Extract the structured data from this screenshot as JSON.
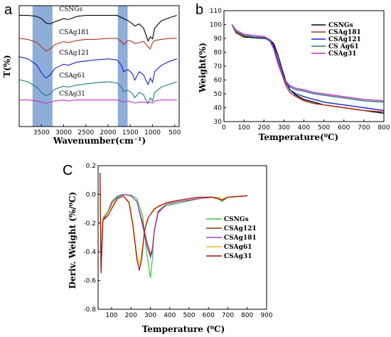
{
  "chart_data": [
    {
      "panel": "a",
      "type": "line",
      "xlabel": "Wavenumber(cm⁻¹)",
      "ylabel": "T(%)",
      "xlim": [
        4000,
        400
      ],
      "xticks": [
        3500,
        3000,
        2500,
        2000,
        1500,
        1000,
        500
      ],
      "highlight_bands": [
        [
          3700,
          3250
        ],
        [
          1780,
          1560
        ]
      ],
      "series": [
        {
          "name": "CSNGs",
          "color": "#000000",
          "offset": 0.92,
          "x": [
            4000,
            3800,
            3600,
            3500,
            3400,
            3300,
            3200,
            3000,
            2900,
            2700,
            2500,
            2300,
            2000,
            1800,
            1700,
            1650,
            1550,
            1450,
            1400,
            1300,
            1200,
            1150,
            1100,
            1050,
            1000,
            950,
            800,
            600,
            450
          ],
          "y": [
            0,
            0,
            -0.01,
            -0.03,
            -0.07,
            -0.08,
            -0.06,
            -0.03,
            -0.04,
            -0.01,
            0,
            0,
            0,
            0,
            -0.02,
            -0.03,
            -0.05,
            -0.08,
            -0.1,
            -0.08,
            -0.12,
            -0.18,
            -0.24,
            -0.2,
            -0.22,
            -0.12,
            -0.05,
            -0.02,
            0
          ]
        },
        {
          "name": "CSAg181",
          "color": "#b5311d",
          "offset": 0.73,
          "x": [
            4000,
            3800,
            3600,
            3500,
            3400,
            3300,
            3200,
            3000,
            2900,
            2700,
            2500,
            2300,
            2000,
            1800,
            1700,
            1650,
            1600,
            1550,
            1450,
            1400,
            1300,
            1200,
            1100,
            1050,
            1000,
            950,
            800,
            600,
            450
          ],
          "y": [
            0,
            -0.01,
            -0.04,
            -0.08,
            -0.12,
            -0.1,
            -0.06,
            -0.03,
            -0.04,
            -0.02,
            -0.01,
            -0.01,
            0,
            0,
            -0.03,
            -0.06,
            -0.04,
            -0.02,
            -0.03,
            -0.05,
            -0.04,
            -0.03,
            -0.08,
            -0.1,
            -0.04,
            -0.02,
            -0.01,
            0,
            0
          ]
        },
        {
          "name": "CSAg121",
          "color": "#1621c8",
          "offset": 0.56,
          "x": [
            4000,
            3800,
            3600,
            3500,
            3400,
            3300,
            3200,
            3000,
            2900,
            2700,
            2500,
            2300,
            2000,
            1800,
            1700,
            1650,
            1550,
            1450,
            1400,
            1300,
            1200,
            1150,
            1100,
            1050,
            1000,
            950,
            800,
            600,
            450
          ],
          "y": [
            0.02,
            0,
            -0.06,
            -0.13,
            -0.18,
            -0.15,
            -0.09,
            -0.05,
            -0.06,
            -0.03,
            -0.02,
            -0.01,
            0,
            -0.01,
            -0.06,
            -0.12,
            -0.1,
            -0.14,
            -0.2,
            -0.12,
            -0.15,
            -0.2,
            -0.24,
            -0.18,
            -0.22,
            -0.12,
            -0.06,
            -0.02,
            0
          ]
        },
        {
          "name": "CSAg61",
          "color": "#1c7a7a",
          "offset": 0.37,
          "x": [
            4000,
            3800,
            3600,
            3500,
            3400,
            3300,
            3200,
            3000,
            2900,
            2700,
            2500,
            2300,
            2000,
            1800,
            1700,
            1650,
            1550,
            1450,
            1400,
            1300,
            1200,
            1150,
            1100,
            1050,
            1000,
            950,
            800,
            600,
            450
          ],
          "y": [
            0.02,
            0,
            -0.05,
            -0.1,
            -0.13,
            -0.11,
            -0.07,
            -0.04,
            -0.05,
            -0.03,
            -0.02,
            -0.01,
            0,
            -0.01,
            -0.05,
            -0.09,
            -0.08,
            -0.11,
            -0.15,
            -0.1,
            -0.12,
            -0.17,
            -0.2,
            -0.15,
            -0.18,
            -0.1,
            -0.05,
            -0.02,
            0
          ]
        },
        {
          "name": "CSAg31",
          "color": "#c033c0",
          "offset": 0.22,
          "x": [
            4000,
            3800,
            3600,
            3500,
            3400,
            3300,
            3200,
            3000,
            2900,
            2700,
            2500,
            2300,
            2000,
            1800,
            1700,
            1650,
            1550,
            1450,
            1400,
            1300,
            1200,
            1100,
            1050,
            1000,
            950,
            800,
            600,
            450
          ],
          "y": [
            0,
            0,
            -0.01,
            -0.02,
            -0.03,
            -0.02,
            -0.01,
            0,
            -0.01,
            0,
            0,
            0,
            0,
            0,
            -0.01,
            -0.02,
            -0.01,
            -0.02,
            -0.03,
            -0.02,
            -0.02,
            -0.03,
            -0.02,
            -0.03,
            -0.01,
            0,
            0,
            0
          ]
        }
      ]
    },
    {
      "panel": "b",
      "type": "line",
      "xlabel": "Temperature(⁰C)",
      "ylabel": "Weight(%)",
      "xlim": [
        0,
        800
      ],
      "ylim": [
        30,
        110
      ],
      "xticks": [
        0,
        100,
        200,
        300,
        400,
        500,
        600,
        700,
        800
      ],
      "yticks": [
        30,
        40,
        50,
        60,
        70,
        80,
        90,
        100,
        110
      ],
      "legend_position": "top-right",
      "series": [
        {
          "name": "CSNGs",
          "color": "#000000",
          "x": [
            40,
            60,
            100,
            150,
            200,
            230,
            250,
            270,
            290,
            310,
            330,
            360,
            400,
            450,
            500,
            600,
            700,
            800
          ],
          "y": [
            100,
            94,
            91,
            90.5,
            90,
            89,
            86,
            78,
            68,
            59,
            53,
            49,
            46,
            44,
            42,
            40,
            38,
            36
          ]
        },
        {
          "name": "CSAg181",
          "color": "#b5311d",
          "x": [
            40,
            60,
            100,
            150,
            200,
            230,
            250,
            270,
            290,
            310,
            330,
            360,
            400,
            450,
            500,
            600,
            700,
            800
          ],
          "y": [
            100,
            94,
            91.5,
            91,
            90.5,
            89,
            84,
            74,
            64,
            56,
            51,
            48,
            45,
            43,
            42,
            40,
            38,
            37
          ]
        },
        {
          "name": "CSAg121",
          "color": "#1621c8",
          "x": [
            40,
            60,
            100,
            150,
            200,
            230,
            250,
            270,
            290,
            310,
            330,
            360,
            400,
            450,
            500,
            600,
            700,
            800
          ],
          "y": [
            100,
            95,
            92,
            91,
            90.5,
            89,
            84,
            74,
            65,
            58,
            53,
            50,
            48,
            46,
            44,
            42,
            40,
            38
          ]
        },
        {
          "name": "CS Ag61",
          "color": "#1c7a7a",
          "x": [
            40,
            60,
            100,
            150,
            200,
            230,
            250,
            270,
            290,
            310,
            330,
            360,
            400,
            450,
            500,
            600,
            700,
            800
          ],
          "y": [
            100,
            95,
            92,
            91,
            90.5,
            88,
            82,
            72,
            64,
            58,
            55,
            53,
            52,
            50,
            49,
            47,
            45,
            44
          ]
        },
        {
          "name": "CSAg31",
          "color": "#c033c0",
          "x": [
            40,
            60,
            100,
            150,
            200,
            230,
            250,
            270,
            290,
            310,
            330,
            360,
            400,
            450,
            500,
            600,
            700,
            800
          ],
          "y": [
            100,
            96,
            93,
            92,
            91.5,
            89,
            82,
            72,
            64,
            59,
            56,
            54,
            53,
            51,
            50,
            48,
            46,
            45
          ]
        }
      ]
    },
    {
      "panel": "C",
      "type": "line",
      "xlabel": "Temperature (⁰C)",
      "ylabel": "Deriv. Weight (%/⁰C)",
      "xlim": [
        30,
        900
      ],
      "ylim": [
        -0.8,
        0.2
      ],
      "xticks": [
        100,
        200,
        300,
        400,
        500,
        600,
        700,
        800,
        900
      ],
      "yticks": [
        -0.8,
        -0.6,
        -0.4,
        -0.2,
        0.0,
        0.2
      ],
      "legend_position": "right",
      "series": [
        {
          "name": "CSNGs",
          "color": "#33cc33",
          "x": [
            40,
            45,
            55,
            80,
            100,
            130,
            160,
            200,
            230,
            260,
            280,
            300,
            310,
            320,
            340,
            380,
            450,
            550,
            620,
            650,
            670,
            700,
            750,
            800
          ],
          "y": [
            0.15,
            -0.5,
            -0.16,
            -0.12,
            -0.05,
            -0.01,
            0,
            -0.005,
            -0.03,
            -0.15,
            -0.4,
            -0.58,
            -0.45,
            -0.25,
            -0.12,
            -0.08,
            -0.06,
            -0.03,
            -0.02,
            -0.03,
            -0.05,
            -0.02,
            -0.015,
            -0.01
          ]
        },
        {
          "name": "CSAg121",
          "color": "#7a3b0a",
          "x": [
            40,
            45,
            55,
            80,
            100,
            130,
            160,
            200,
            230,
            260,
            280,
            300,
            310,
            320,
            340,
            380,
            450,
            550,
            620,
            650,
            670,
            700,
            750,
            800
          ],
          "y": [
            0.15,
            -0.4,
            -0.18,
            -0.13,
            -0.06,
            -0.02,
            0,
            -0.01,
            -0.05,
            -0.2,
            -0.32,
            -0.42,
            -0.38,
            -0.25,
            -0.12,
            -0.07,
            -0.05,
            -0.03,
            -0.02,
            -0.03,
            -0.04,
            -0.02,
            -0.015,
            -0.01
          ]
        },
        {
          "name": "CSAg181",
          "color": "#9a40e0",
          "x": [
            40,
            45,
            55,
            80,
            100,
            130,
            160,
            200,
            230,
            260,
            280,
            300,
            310,
            320,
            340,
            380,
            450,
            550,
            620,
            650,
            670,
            700,
            750,
            800
          ],
          "y": [
            0.15,
            -0.45,
            -0.17,
            -0.13,
            -0.06,
            -0.02,
            0,
            -0.01,
            -0.05,
            -0.22,
            -0.35,
            -0.44,
            -0.4,
            -0.26,
            -0.13,
            -0.07,
            -0.05,
            -0.03,
            -0.02,
            -0.03,
            -0.04,
            -0.02,
            -0.015,
            -0.01
          ]
        },
        {
          "name": "CSAg61",
          "color": "#e0c020",
          "x": [
            40,
            45,
            55,
            80,
            100,
            130,
            160,
            190,
            210,
            230,
            245,
            260,
            280,
            300,
            340,
            400,
            500,
            600,
            650,
            670,
            700,
            750,
            800
          ],
          "y": [
            0.15,
            -0.35,
            -0.16,
            -0.13,
            -0.08,
            -0.03,
            -0.01,
            -0.05,
            -0.2,
            -0.42,
            -0.5,
            -0.35,
            -0.18,
            -0.14,
            -0.08,
            -0.05,
            -0.03,
            -0.02,
            -0.02,
            -0.03,
            -0.02,
            -0.015,
            -0.01
          ]
        },
        {
          "name": "CSAg31",
          "color": "#a01010",
          "x": [
            40,
            45,
            55,
            80,
            100,
            130,
            160,
            190,
            210,
            230,
            242,
            255,
            270,
            290,
            320,
            380,
            450,
            550,
            620,
            650,
            670,
            700,
            750,
            800
          ],
          "y": [
            0.15,
            -0.55,
            -0.18,
            -0.15,
            -0.1,
            -0.03,
            -0.01,
            -0.06,
            -0.22,
            -0.45,
            -0.53,
            -0.45,
            -0.25,
            -0.16,
            -0.1,
            -0.06,
            -0.04,
            -0.02,
            -0.02,
            -0.03,
            -0.04,
            -0.02,
            -0.015,
            -0.01
          ]
        }
      ]
    }
  ]
}
